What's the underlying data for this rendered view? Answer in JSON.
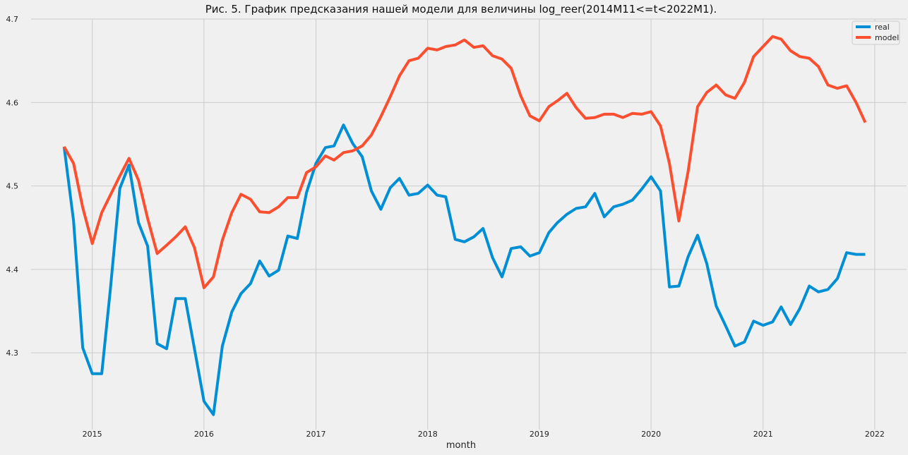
{
  "chart_data": {
    "type": "line",
    "title": "Рис. 5. График предсказания нашей модели для величины log_reer(2014M11<=t<2022M1).",
    "xlabel": "month",
    "ylabel": "",
    "x_tick_labels": [
      "2015",
      "2016",
      "2017",
      "2018",
      "2019",
      "2020",
      "2021",
      "2022"
    ],
    "y_tick_labels": [
      "4.3",
      "4.4",
      "4.5",
      "4.6",
      "4.7"
    ],
    "xlim": [
      "2014-06-15",
      "2022-04-15"
    ],
    "ylim": [
      4.208,
      4.7
    ],
    "grid": true,
    "legend_position": "top-right",
    "x": [
      "2014-10",
      "2014-11",
      "2014-12",
      "2015-01",
      "2015-02",
      "2015-03",
      "2015-04",
      "2015-05",
      "2015-06",
      "2015-07",
      "2015-08",
      "2015-09",
      "2015-10",
      "2015-11",
      "2015-12",
      "2016-01",
      "2016-02",
      "2016-03",
      "2016-04",
      "2016-05",
      "2016-06",
      "2016-07",
      "2016-08",
      "2016-09",
      "2016-10",
      "2016-11",
      "2016-12",
      "2017-01",
      "2017-02",
      "2017-03",
      "2017-04",
      "2017-05",
      "2017-06",
      "2017-07",
      "2017-08",
      "2017-09",
      "2017-10",
      "2017-11",
      "2017-12",
      "2018-01",
      "2018-02",
      "2018-03",
      "2018-04",
      "2018-05",
      "2018-06",
      "2018-07",
      "2018-08",
      "2018-09",
      "2018-10",
      "2018-11",
      "2018-12",
      "2019-01",
      "2019-02",
      "2019-03",
      "2019-04",
      "2019-05",
      "2019-06",
      "2019-07",
      "2019-08",
      "2019-09",
      "2019-10",
      "2019-11",
      "2019-12",
      "2020-01",
      "2020-02",
      "2020-03",
      "2020-04",
      "2020-05",
      "2020-06",
      "2020-07",
      "2020-08",
      "2020-09",
      "2020-10",
      "2020-11",
      "2020-12",
      "2021-01",
      "2021-02",
      "2021-03",
      "2021-04",
      "2021-05",
      "2021-06",
      "2021-07",
      "2021-08",
      "2021-09",
      "2021-10",
      "2021-11",
      "2021-12"
    ],
    "series": [
      {
        "name": "real",
        "color": "#008fd5",
        "values": [
          4.547,
          4.458,
          4.306,
          4.275,
          4.275,
          4.376,
          4.497,
          4.525,
          4.456,
          4.428,
          4.311,
          4.305,
          4.365,
          4.365,
          4.305,
          4.242,
          4.226,
          4.308,
          4.349,
          4.371,
          4.383,
          4.41,
          4.392,
          4.399,
          4.44,
          4.437,
          4.492,
          4.527,
          4.546,
          4.548,
          4.573,
          4.551,
          4.535,
          4.494,
          4.472,
          4.498,
          4.509,
          4.489,
          4.491,
          4.501,
          4.489,
          4.487,
          4.436,
          4.433,
          4.439,
          4.449,
          4.414,
          4.391,
          4.425,
          4.427,
          4.416,
          4.42,
          4.444,
          4.456,
          4.466,
          4.473,
          4.475,
          4.491,
          4.463,
          4.475,
          4.478,
          4.483,
          4.496,
          4.511,
          4.494,
          4.379,
          4.38,
          4.415,
          4.441,
          4.407,
          4.356,
          4.332,
          4.308,
          4.313,
          4.338,
          4.333,
          4.337,
          4.355,
          4.334,
          4.353,
          4.38,
          4.373,
          4.376,
          4.389,
          4.42,
          4.418,
          4.418
        ]
      },
      {
        "name": "model",
        "color": "#fc4f30",
        "values": [
          4.547,
          4.527,
          4.474,
          4.431,
          4.468,
          4.489,
          4.512,
          4.533,
          4.507,
          4.461,
          4.419,
          4.429,
          4.439,
          4.451,
          4.426,
          4.378,
          4.391,
          4.435,
          4.468,
          4.49,
          4.484,
          4.469,
          4.468,
          4.475,
          4.486,
          4.486,
          4.516,
          4.523,
          4.536,
          4.531,
          4.54,
          4.542,
          4.548,
          4.561,
          4.583,
          4.607,
          4.632,
          4.65,
          4.653,
          4.665,
          4.663,
          4.667,
          4.669,
          4.675,
          4.666,
          4.668,
          4.656,
          4.652,
          4.641,
          4.608,
          4.584,
          4.578,
          4.595,
          4.602,
          4.611,
          4.594,
          4.581,
          4.582,
          4.586,
          4.586,
          4.582,
          4.587,
          4.586,
          4.589,
          4.572,
          4.527,
          4.458,
          4.517,
          4.595,
          4.612,
          4.621,
          4.609,
          4.605,
          4.624,
          4.655,
          4.667,
          4.679,
          4.676,
          4.662,
          4.655,
          4.653,
          4.643,
          4.621,
          4.617,
          4.62,
          4.6,
          4.576
        ]
      }
    ]
  }
}
